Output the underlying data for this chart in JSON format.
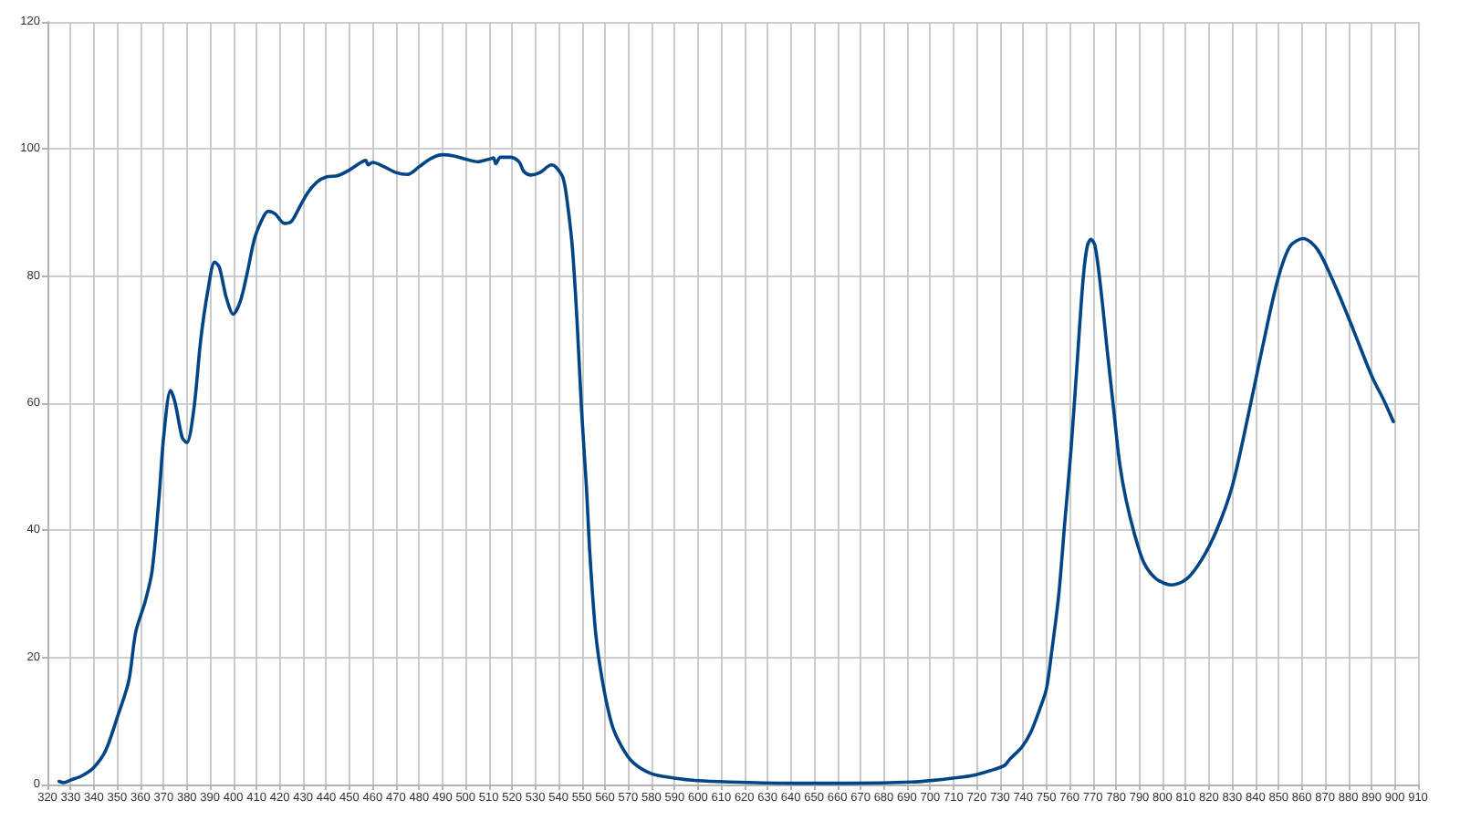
{
  "chart_data": {
    "type": "line",
    "color": "#004586",
    "grid": true,
    "x": [
      325,
      327,
      330,
      335,
      340,
      345,
      350,
      355,
      358,
      362,
      365,
      368,
      370,
      373,
      375,
      378,
      380,
      383,
      386,
      389,
      392,
      394,
      397,
      400,
      403,
      406,
      409,
      412,
      415,
      418,
      422,
      425,
      428,
      432,
      436,
      440,
      445,
      450,
      455,
      457,
      458,
      460,
      465,
      470,
      475,
      480,
      485,
      490,
      495,
      500,
      505,
      510,
      512,
      513,
      515,
      519,
      523,
      525,
      528,
      532,
      537,
      539,
      542,
      544,
      546,
      548,
      550,
      552,
      553.5,
      556,
      559,
      563,
      567,
      572,
      580,
      590,
      600,
      614,
      640,
      666,
      692,
      705,
      718,
      726,
      732,
      734.3,
      739.5,
      743.4,
      747.4,
      750,
      752.2,
      755.3,
      757.9,
      760.6,
      763.2,
      765.8,
      767.6,
      769.2,
      771,
      773.6,
      776.3,
      778.9,
      781.5,
      784.2,
      788.1,
      792,
      797.2,
      803.8,
      810.3,
      816.9,
      823.5,
      830,
      836.5,
      843.1,
      849.6,
      854.9,
      860.6,
      866.7,
      873.2,
      879.8,
      885,
      890.3,
      895.5,
      899.4
    ],
    "values": [
      0.5,
      0.3,
      0.7,
      1.4,
      2.7,
      5.3,
      10.5,
      16.3,
      24,
      28.7,
      33.5,
      45,
      54.6,
      62,
      60,
      54.6,
      53.8,
      59,
      70,
      77.6,
      82.2,
      81.4,
      76.6,
      74,
      76,
      80.5,
      85.7,
      88.6,
      90.2,
      89.8,
      88.3,
      88.6,
      90.5,
      93.1,
      94.8,
      95.6,
      95.8,
      96.7,
      97.9,
      98.2,
      97.5,
      97.9,
      97.2,
      96.3,
      96,
      97.2,
      98.5,
      99.1,
      98.9,
      98.4,
      98,
      98.4,
      98.6,
      97.7,
      98.7,
      98.7,
      98,
      96.5,
      95.9,
      96.3,
      97.5,
      97.1,
      95.4,
      91,
      84.3,
      72.8,
      58.4,
      46.9,
      36.3,
      23.8,
      16.1,
      9.4,
      6.1,
      3.5,
      1.7,
      1,
      0.6,
      0.4,
      0.2,
      0.2,
      0.4,
      0.8,
      1.4,
      2.2,
      3,
      4,
      5.9,
      8.3,
      12.1,
      15,
      20.6,
      29.7,
      41.1,
      52.6,
      66,
      79.4,
      84.7,
      85.8,
      84.7,
      77.5,
      68,
      59.3,
      50.7,
      45,
      39.2,
      34.9,
      32.4,
      31.4,
      32.3,
      35.4,
      40.2,
      46.9,
      57.4,
      68.9,
      79.4,
      84.7,
      85.9,
      84.2,
      79.4,
      73.7,
      68.9,
      64.1,
      60.3,
      57.1
    ],
    "xlim": [
      320,
      910
    ],
    "xticks": [
      320,
      330,
      340,
      350,
      360,
      370,
      380,
      390,
      400,
      410,
      420,
      430,
      440,
      450,
      460,
      470,
      480,
      490,
      500,
      510,
      520,
      530,
      540,
      550,
      560,
      570,
      580,
      590,
      600,
      610,
      620,
      630,
      640,
      650,
      660,
      670,
      680,
      690,
      700,
      710,
      720,
      730,
      740,
      750,
      760,
      770,
      780,
      790,
      800,
      810,
      820,
      830,
      840,
      850,
      860,
      870,
      880,
      890,
      900,
      910
    ],
    "ylim": [
      0,
      120
    ],
    "yticks": [
      0,
      20,
      40,
      60,
      80,
      100,
      120
    ]
  }
}
